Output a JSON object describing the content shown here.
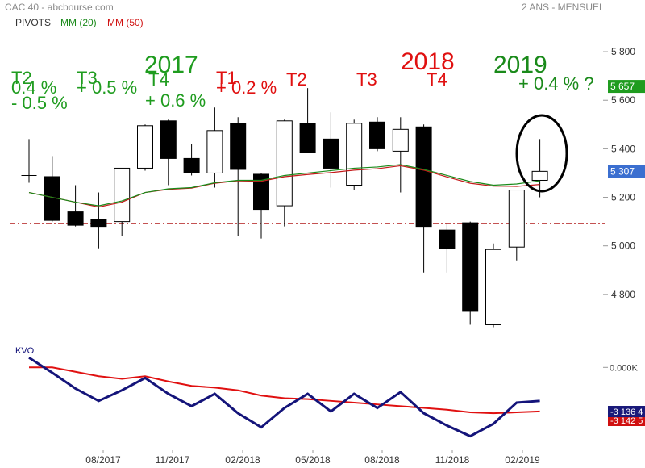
{
  "header": {
    "title": "CAC 40 - abcbourse.com",
    "period": "2 ANS - MENSUEL",
    "legend": [
      {
        "label": "PIVOTS",
        "color": "#333333"
      },
      {
        "label": "MM (20)",
        "color": "#1a8a1a"
      },
      {
        "label": "MM (50)",
        "color": "#d01010"
      }
    ]
  },
  "annotations": {
    "years": [
      {
        "text": "2017",
        "color": "#1f9c1f"
      },
      {
        "text": "2018",
        "color": "#e01010"
      },
      {
        "text": "2019",
        "color": "#1a8a1a"
      }
    ],
    "quarters": [
      {
        "text": "T2",
        "color": "#1f9c1f"
      },
      {
        "text": "T3",
        "color": "#1f9c1f"
      },
      {
        "text": "T4",
        "color": "#1f9c1f"
      },
      {
        "text": "T1",
        "color": "#e01010"
      },
      {
        "text": "T2",
        "color": "#e01010"
      },
      {
        "text": "T3",
        "color": "#e01010"
      },
      {
        "text": "T4",
        "color": "#e01010"
      }
    ],
    "changes": [
      {
        "text": "0.4 %",
        "color": "#1f9c1f"
      },
      {
        "text": "- 0.5 %",
        "color": "#1f9c1f"
      },
      {
        "text": "+ 0.5 %",
        "color": "#1f9c1f"
      },
      {
        "text": "+ 0.6 %",
        "color": "#1f9c1f"
      },
      {
        "text": "+ 0.2 %",
        "color": "#e01010"
      },
      {
        "text": "+ 0.4 % ?",
        "color": "#1a8a1a"
      }
    ]
  },
  "chart_data": [
    {
      "type": "candlestick",
      "title": "CAC 40",
      "period": "2 ANS - MENSUEL",
      "x_tick_labels": [
        "08/2017",
        "11/2017",
        "02/2018",
        "05/2018",
        "08/2018",
        "11/2018",
        "02/2019"
      ],
      "y_ticks": [
        4800,
        5000,
        5200,
        5400,
        5600,
        5800
      ],
      "y_tick_labels": [
        "4 800",
        "5 000",
        "5 200",
        "5 400",
        "5 600",
        "5 800"
      ],
      "ylim": [
        4630,
        5880
      ],
      "price_badges": [
        {
          "label": "5 657",
          "value": 5657,
          "color": "#1f9c1f"
        },
        {
          "label": "5 307",
          "value": 5307,
          "color": "#3b6fd0"
        }
      ],
      "pivot_level": 5093,
      "candles": [
        {
          "open": 5290,
          "high": 5440,
          "low": 5260,
          "close": 5290
        },
        {
          "open": 5285,
          "high": 5370,
          "low": 5100,
          "close": 5105
        },
        {
          "open": 5140,
          "high": 5250,
          "low": 5080,
          "close": 5085
        },
        {
          "open": 5110,
          "high": 5220,
          "low": 4990,
          "close": 5080
        },
        {
          "open": 5100,
          "high": 5320,
          "low": 5040,
          "close": 5320
        },
        {
          "open": 5320,
          "high": 5500,
          "low": 5310,
          "close": 5495
        },
        {
          "open": 5515,
          "high": 5520,
          "low": 5250,
          "close": 5360
        },
        {
          "open": 5360,
          "high": 5420,
          "low": 5290,
          "close": 5300
        },
        {
          "open": 5300,
          "high": 5570,
          "low": 5240,
          "close": 5475
        },
        {
          "open": 5505,
          "high": 5530,
          "low": 5040,
          "close": 5315
        },
        {
          "open": 5295,
          "high": 5300,
          "low": 5030,
          "close": 5150
        },
        {
          "open": 5165,
          "high": 5520,
          "low": 5080,
          "close": 5515
        },
        {
          "open": 5505,
          "high": 5650,
          "low": 5385,
          "close": 5385
        },
        {
          "open": 5440,
          "high": 5550,
          "low": 5240,
          "close": 5320
        },
        {
          "open": 5250,
          "high": 5520,
          "low": 5230,
          "close": 5505
        },
        {
          "open": 5510,
          "high": 5530,
          "low": 5390,
          "close": 5400
        },
        {
          "open": 5390,
          "high": 5530,
          "low": 5220,
          "close": 5480
        },
        {
          "open": 5490,
          "high": 5500,
          "low": 4890,
          "close": 5080
        },
        {
          "open": 5065,
          "high": 5095,
          "low": 4890,
          "close": 4990
        },
        {
          "open": 5095,
          "high": 5100,
          "low": 4675,
          "close": 4730
        },
        {
          "open": 4675,
          "high": 5010,
          "low": 4665,
          "close": 4985
        },
        {
          "open": 4995,
          "high": 5230,
          "low": 4940,
          "close": 5230
        },
        {
          "open": 5270,
          "high": 5440,
          "low": 5200,
          "close": 5307
        }
      ],
      "mm20": [
        5220,
        5200,
        5180,
        5165,
        5185,
        5220,
        5235,
        5240,
        5260,
        5270,
        5270,
        5290,
        5300,
        5310,
        5320,
        5325,
        5335,
        5315,
        5290,
        5265,
        5250,
        5255,
        5268
      ],
      "mm50": [
        5220,
        5200,
        5180,
        5160,
        5180,
        5220,
        5233,
        5238,
        5258,
        5268,
        5266,
        5285,
        5294,
        5302,
        5312,
        5318,
        5330,
        5312,
        5284,
        5258,
        5246,
        5245,
        5253
      ]
    },
    {
      "type": "line",
      "title": "KVO",
      "zero_label": "0.000K",
      "value_badges": [
        {
          "label": "-3 136 4",
          "color": "#1a1a7a"
        },
        {
          "label": "-3 142 5",
          "color": "#d01010"
        }
      ],
      "ylim": [
        -4.7,
        0.7
      ],
      "series": [
        {
          "name": "KVO",
          "color": "#14147a",
          "values": [
            0.55,
            -0.3,
            -1.2,
            -1.9,
            -1.3,
            -0.6,
            -1.5,
            -2.2,
            -1.5,
            -2.6,
            -3.4,
            -2.3,
            -1.5,
            -2.5,
            -1.5,
            -2.3,
            -1.4,
            -2.6,
            -3.3,
            -3.9,
            -3.2,
            -2.0,
            -1.9
          ]
        },
        {
          "name": "signal",
          "color": "#e01010",
          "values": [
            0.0,
            0.0,
            -0.25,
            -0.5,
            -0.65,
            -0.5,
            -0.8,
            -1.05,
            -1.15,
            -1.3,
            -1.6,
            -1.75,
            -1.8,
            -1.9,
            -2.0,
            -2.1,
            -2.2,
            -2.3,
            -2.4,
            -2.55,
            -2.6,
            -2.55,
            -2.5
          ]
        }
      ]
    }
  ]
}
